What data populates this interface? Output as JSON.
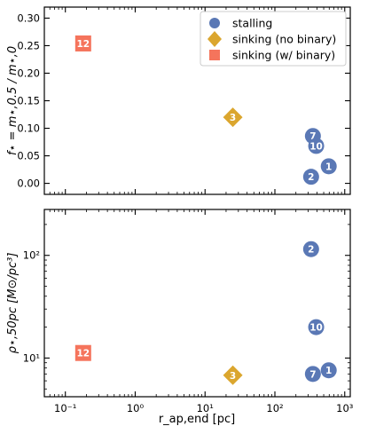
{
  "chart_data": [
    {
      "type": "scatter",
      "panel": "top",
      "title": "",
      "xscale": "log",
      "xlim": [
        0.05,
        1200
      ],
      "ylabel": "f⋆ = m⋆,0.5 / m⋆,0",
      "ylim": [
        -0.02,
        0.32
      ],
      "yticks": [
        "0.00",
        "0.05",
        "0.10",
        "0.15",
        "0.20",
        "0.25",
        "0.30"
      ],
      "legend": {
        "placement": "top-right",
        "entries": [
          {
            "label": "stalling",
            "marker": "circle",
            "color": "#5a78b5"
          },
          {
            "label": "sinking (no binary)",
            "marker": "diamond",
            "color": "#dba62e"
          },
          {
            "label": "sinking (w/ binary)",
            "marker": "square",
            "color": "#f5745c"
          }
        ]
      },
      "series": [
        {
          "name": "stalling",
          "marker": "circle",
          "color": "#5a78b5",
          "points": [
            {
              "label": "7",
              "x": 350,
              "y": 0.086
            },
            {
              "label": "10",
              "x": 390,
              "y": 0.068
            },
            {
              "label": "1",
              "x": 590,
              "y": 0.031
            },
            {
              "label": "2",
              "x": 330,
              "y": 0.012
            }
          ]
        },
        {
          "name": "sinking (no binary)",
          "marker": "diamond",
          "color": "#dba62e",
          "points": [
            {
              "label": "3",
              "x": 25,
              "y": 0.12
            }
          ]
        },
        {
          "name": "sinking (w/ binary)",
          "marker": "square",
          "color": "#f5745c",
          "points": [
            {
              "label": "12",
              "x": 0.18,
              "y": 0.254
            }
          ]
        }
      ]
    },
    {
      "type": "scatter",
      "panel": "bottom",
      "title": "",
      "xscale": "log",
      "yscale": "log",
      "xlim": [
        0.05,
        1200
      ],
      "ylim": [
        4.2,
        280
      ],
      "xlabel": "r_ap,end [pc]",
      "ylabel": "ρ⋆,50pc [M⊙/pc³]",
      "xticks": [
        "10⁻¹",
        "10⁰",
        "10¹",
        "10²",
        "10³"
      ],
      "yticks": [
        "10¹",
        "10²"
      ],
      "series": [
        {
          "name": "stalling",
          "marker": "circle",
          "color": "#5a78b5",
          "points": [
            {
              "label": "2",
              "x": 330,
              "y": 115
            },
            {
              "label": "10",
              "x": 390,
              "y": 20
            },
            {
              "label": "1",
              "x": 590,
              "y": 7.6
            },
            {
              "label": "7",
              "x": 350,
              "y": 7.0
            }
          ]
        },
        {
          "name": "sinking (no binary)",
          "marker": "diamond",
          "color": "#dba62e",
          "points": [
            {
              "label": "3",
              "x": 25,
              "y": 6.8
            }
          ]
        },
        {
          "name": "sinking (w/ binary)",
          "marker": "square",
          "color": "#f5745c",
          "points": [
            {
              "label": "12",
              "x": 0.18,
              "y": 11.2
            }
          ]
        }
      ]
    }
  ]
}
